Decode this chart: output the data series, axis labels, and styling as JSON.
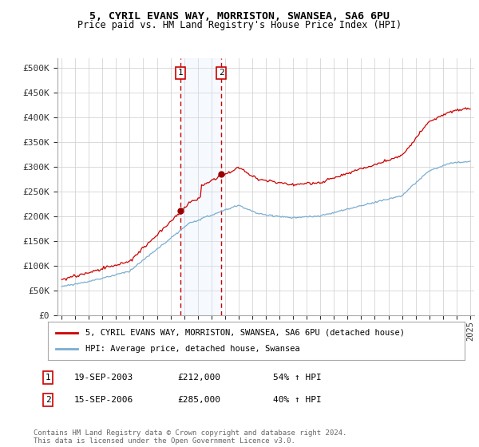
{
  "title1": "5, CYRIL EVANS WAY, MORRISTON, SWANSEA, SA6 6PU",
  "title2": "Price paid vs. HM Land Registry's House Price Index (HPI)",
  "ylabel_ticks": [
    "£0",
    "£50K",
    "£100K",
    "£150K",
    "£200K",
    "£250K",
    "£300K",
    "£350K",
    "£400K",
    "£450K",
    "£500K"
  ],
  "ytick_values": [
    0,
    50000,
    100000,
    150000,
    200000,
    250000,
    300000,
    350000,
    400000,
    450000,
    500000
  ],
  "ylim": [
    0,
    520000
  ],
  "xlim_start": 1994.7,
  "xlim_end": 2025.3,
  "sale1_date": 2003.72,
  "sale1_price": 212000,
  "sale2_date": 2006.72,
  "sale2_price": 285000,
  "red_line_color": "#cc0000",
  "blue_line_color": "#7aadcf",
  "sale_dot_color": "#990000",
  "shaded_region_color": "#ddeeff",
  "legend_label1": "5, CYRIL EVANS WAY, MORRISTON, SWANSEA, SA6 6PU (detached house)",
  "legend_label2": "HPI: Average price, detached house, Swansea",
  "table_entries": [
    {
      "num": 1,
      "date": "19-SEP-2003",
      "price": "£212,000",
      "hpi": "54% ↑ HPI"
    },
    {
      "num": 2,
      "date": "15-SEP-2006",
      "price": "£285,000",
      "hpi": "40% ↑ HPI"
    }
  ],
  "footnote": "Contains HM Land Registry data © Crown copyright and database right 2024.\nThis data is licensed under the Open Government Licence v3.0.",
  "background_color": "#ffffff",
  "grid_color": "#cccccc"
}
